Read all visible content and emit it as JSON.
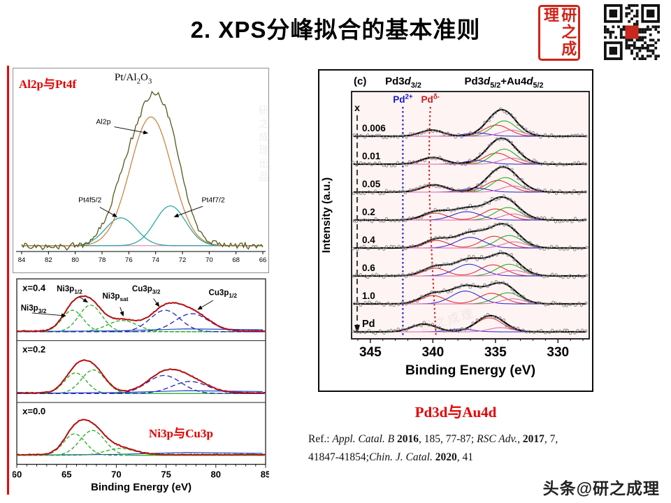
{
  "page": {
    "title": "2. XPS分峰拟合的基本准则",
    "watermark": "头条@研之成理",
    "faint": [
      "研之成理出品",
      "研之成理"
    ]
  },
  "logo": {
    "seal_text": "研之成理"
  },
  "caption": {
    "pd_label": "Pd3d与Au4d"
  },
  "refs": {
    "line1": [
      {
        "t": "Ref.: "
      },
      {
        "t": "Appl. Catal. B ",
        "i": 1
      },
      {
        "t": "2016",
        "b": 1
      },
      {
        "t": ", 185, 77-87; "
      },
      {
        "t": "RSC Adv.,",
        "i": 1
      },
      {
        "t": " "
      },
      {
        "t": "2017",
        "b": 1
      },
      {
        "t": ", 7,"
      }
    ],
    "line2": [
      {
        "t": "41847-41854;"
      },
      {
        "t": "Chin. J. Catal. ",
        "i": 1
      },
      {
        "t": "2020",
        "b": 1
      },
      {
        "t": ", 41"
      }
    ]
  },
  "chart_data": [
    {
      "id": "pt-al2o3",
      "type": "line",
      "corner_label": "Al2p与Pt4f",
      "title_runs": [
        {
          "t": "Pt/Al"
        },
        {
          "t": "2",
          "sub": 1
        },
        {
          "t": "O"
        },
        {
          "t": "3",
          "sub": 1
        }
      ],
      "xlabel": "",
      "ylabel": "",
      "x_range": [
        84,
        66
      ],
      "x_ticks": [
        84,
        82,
        80,
        78,
        76,
        74,
        72,
        70,
        68,
        66
      ],
      "series": [
        {
          "name": "baseline",
          "color": "#d98ab5",
          "peaks": []
        },
        {
          "name": "Pt4f5/2 fit",
          "color": "#1ba29b",
          "peaks": [
            [
              76.6,
              0.21,
              1.15
            ]
          ]
        },
        {
          "name": "Pt4f7/2 fit",
          "color": "#1ba29b",
          "peaks": [
            [
              72.9,
              0.3,
              1.15
            ]
          ]
        },
        {
          "name": "Al2p fit",
          "color": "#cc7a33",
          "peaks": [
            [
              74.35,
              0.97,
              1.55
            ]
          ]
        },
        {
          "name": "envelope",
          "color": "#56561e",
          "sum": true,
          "noise": 0.022
        }
      ],
      "annotations": [
        {
          "runs": [
            {
              "t": "Al2p"
            }
          ],
          "tx": 77.9,
          "ty": 0.93,
          "ax": 74.6,
          "ay": 0.86,
          "anchor": "middle",
          "fs": 10.5
        },
        {
          "runs": [
            {
              "t": "Pt4f5/2"
            }
          ],
          "tx": 78.9,
          "ty": 0.34,
          "ax": 76.9,
          "ay": 0.23,
          "anchor": "middle",
          "fs": 10.5
        },
        {
          "runs": [
            {
              "t": "Pt4f7/2"
            }
          ],
          "tx": 69.7,
          "ty": 0.34,
          "ax": 72.6,
          "ay": 0.23,
          "anchor": "middle",
          "fs": 10.5
        }
      ]
    },
    {
      "id": "ni-cu",
      "type": "line",
      "xlabel_runs": [
        {
          "t": "Binding Energy (eV)",
          "b": 1
        }
      ],
      "x_range": [
        60,
        85
      ],
      "x_ticks": [
        60,
        65,
        70,
        75,
        80,
        85
      ],
      "note": {
        "text": "Ni3p与Cu3p",
        "color": "#e60000",
        "x": 76.5,
        "y": 0.45,
        "panel": 2
      },
      "colors": {
        "envelope": "#b50f0f",
        "ni": "#1faf1f",
        "cu": "#2222c8",
        "base": "#2244cc"
      },
      "panels": [
        {
          "label": "x=0.4",
          "ni": [
            [
              65.6,
              0.5,
              1.05
            ],
            [
              67.4,
              0.62,
              1.15
            ],
            [
              70.6,
              0.26,
              1.5
            ]
          ],
          "cu": [
            [
              74.9,
              0.5,
              1.5
            ],
            [
              77.6,
              0.42,
              1.7
            ]
          ],
          "annotations": [
            {
              "runs": [
                {
                  "t": "Ni3p",
                  "b": 1
                },
                {
                  "t": "3/2",
                  "sub": 1,
                  "b": 1
                }
              ],
              "tx": 60.4,
              "ty": 0.52,
              "ax": 64.9,
              "ay": 0.4,
              "anchor": "start",
              "fs": 11.5
            },
            {
              "runs": [
                {
                  "t": "Ni3p",
                  "b": 1
                },
                {
                  "t": "1/2",
                  "sub": 1,
                  "b": 1
                }
              ],
              "tx": 65.3,
              "ty": 0.97,
              "ax": 67.1,
              "ay": 0.72,
              "anchor": "middle",
              "fs": 11.5
            },
            {
              "runs": [
                {
                  "t": "Ni3p",
                  "b": 1
                },
                {
                  "t": "sat",
                  "sub": 1,
                  "b": 1
                }
              ],
              "tx": 69.9,
              "ty": 0.8,
              "ax": 70.7,
              "ay": 0.4,
              "anchor": "middle",
              "fs": 11.5
            },
            {
              "runs": [
                {
                  "t": "Cu3p",
                  "b": 1
                },
                {
                  "t": "3/2",
                  "sub": 1,
                  "b": 1
                }
              ],
              "tx": 73.0,
              "ty": 0.97,
              "ax": 74.3,
              "ay": 0.62,
              "anchor": "middle",
              "fs": 11.5
            },
            {
              "runs": [
                {
                  "t": "Cu3p",
                  "b": 1
                },
                {
                  "t": "1/2",
                  "sub": 1,
                  "b": 1
                }
              ],
              "tx": 80.7,
              "ty": 0.88,
              "ax": 78.2,
              "ay": 0.55,
              "anchor": "middle",
              "fs": 11.5
            }
          ]
        },
        {
          "label": "x=0.2",
          "ni": [
            [
              65.9,
              0.48,
              1.1
            ],
            [
              67.7,
              0.55,
              1.2
            ]
          ],
          "cu": [
            [
              74.8,
              0.42,
              1.7
            ],
            [
              77.4,
              0.28,
              1.8
            ]
          ],
          "annotations": []
        },
        {
          "label": "x=0.0",
          "ni": [
            [
              65.8,
              0.5,
              1.1
            ],
            [
              67.6,
              0.58,
              1.25
            ],
            [
              70.4,
              0.16,
              1.5
            ]
          ],
          "cu": [],
          "annotations": []
        }
      ]
    },
    {
      "id": "pd3d",
      "type": "line",
      "panel_tag": "(c)",
      "header_left_runs": [
        {
          "t": "Pd3",
          "b": 1
        },
        {
          "t": "d",
          "b": 1,
          "i": 1
        },
        {
          "t": "3/2",
          "b": 1,
          "sub": 1
        }
      ],
      "header_right_runs": [
        {
          "t": "Pd3",
          "b": 1
        },
        {
          "t": "d",
          "b": 1,
          "i": 1
        },
        {
          "t": "5/2",
          "b": 1,
          "sub": 1
        },
        {
          "t": "+Au4",
          "b": 1
        },
        {
          "t": "d",
          "b": 1,
          "i": 1
        },
        {
          "t": "5/2",
          "b": 1,
          "sub": 1
        }
      ],
      "ylabel": "Intensity (a.u.)",
      "xlabel": "Binding Energy (eV)",
      "x_range": [
        346.5,
        327.5
      ],
      "x_ticks": [
        345,
        340,
        335,
        330
      ],
      "arrow_label": "x",
      "guides": [
        {
          "runs": [
            {
              "t": "Pd",
              "b": 1
            },
            {
              "t": "2+",
              "b": 1,
              "sup": 1
            }
          ],
          "x": 342.4,
          "color": "#1515cc"
        },
        {
          "runs": [
            {
              "t": "Pd",
              "b": 1
            },
            {
              "t": "δ-",
              "b": 1,
              "sup": 1
            }
          ],
          "x": 340.2,
          "color": "#d01818",
          "bend": true
        }
      ],
      "comp_colors": [
        "#e02020",
        "#18a818",
        "#2020d0",
        "#e060b0"
      ],
      "traces": [
        {
          "label": "0.006",
          "env": [
            [
              334.5,
              0.95,
              1.1
            ],
            [
              340.1,
              0.22,
              0.9
            ]
          ],
          "comps": [
            [
              [
                340.1,
                0.2,
                0.85
              ],
              [
                334.9,
                0.4,
                1.0
              ]
            ],
            [
              [
                334.3,
                0.55,
                0.95
              ]
            ],
            [
              [
                336.5,
                0.12,
                1.0
              ]
            ],
            [
              [
                333.7,
                0.22,
                0.9
              ]
            ]
          ]
        },
        {
          "label": "0.01",
          "env": [
            [
              334.5,
              0.93,
              1.15
            ],
            [
              340.0,
              0.24,
              0.95
            ]
          ],
          "comps": [
            [
              [
                340.0,
                0.22,
                0.85
              ],
              [
                334.9,
                0.4,
                1.0
              ]
            ],
            [
              [
                334.3,
                0.54,
                0.95
              ]
            ],
            [
              [
                336.5,
                0.13,
                1.0
              ]
            ],
            [
              [
                333.7,
                0.22,
                0.9
              ]
            ]
          ]
        },
        {
          "label": "0.05",
          "env": [
            [
              334.4,
              0.9,
              1.2
            ],
            [
              339.9,
              0.26,
              1.0
            ]
          ],
          "comps": [
            [
              [
                339.9,
                0.24,
                0.9
              ],
              [
                334.8,
                0.42,
                1.0
              ]
            ],
            [
              [
                334.2,
                0.52,
                1.0
              ]
            ],
            [
              [
                336.6,
                0.15,
                1.0
              ]
            ],
            [
              [
                333.6,
                0.22,
                0.9
              ]
            ]
          ]
        },
        {
          "label": "0.2",
          "env": [
            [
              334.4,
              0.8,
              1.2
            ],
            [
              337.3,
              0.4,
              1.2
            ],
            [
              339.8,
              0.28,
              1.0
            ]
          ],
          "comps": [
            [
              [
                339.8,
                0.25,
                0.9
              ],
              [
                335.0,
                0.4,
                1.0
              ]
            ],
            [
              [
                334.0,
                0.45,
                1.0
              ]
            ],
            [
              [
                337.3,
                0.3,
                1.1
              ]
            ],
            [
              [
                333.6,
                0.22,
                0.9
              ]
            ]
          ]
        },
        {
          "label": "0.4",
          "env": [
            [
              334.3,
              0.82,
              1.15
            ],
            [
              337.0,
              0.52,
              1.2
            ],
            [
              339.7,
              0.3,
              1.0
            ]
          ],
          "comps": [
            [
              [
                339.7,
                0.27,
                0.9
              ],
              [
                335.1,
                0.42,
                1.0
              ]
            ],
            [
              [
                333.9,
                0.45,
                1.0
              ]
            ],
            [
              [
                337.0,
                0.38,
                1.1
              ]
            ],
            [
              [
                333.5,
                0.22,
                0.9
              ]
            ]
          ]
        },
        {
          "label": "0.6",
          "env": [
            [
              334.3,
              0.78,
              1.15
            ],
            [
              337.1,
              0.58,
              1.2
            ],
            [
              339.8,
              0.32,
              1.0
            ]
          ],
          "comps": [
            [
              [
                339.8,
                0.28,
                0.9
              ],
              [
                335.2,
                0.4,
                1.0
              ]
            ],
            [
              [
                333.9,
                0.42,
                1.0
              ]
            ],
            [
              [
                337.1,
                0.42,
                1.1
              ]
            ],
            [
              [
                333.5,
                0.2,
                0.9
              ]
            ]
          ]
        },
        {
          "label": "1.0",
          "env": [
            [
              334.5,
              0.72,
              1.15
            ],
            [
              337.4,
              0.62,
              1.2
            ],
            [
              340.0,
              0.34,
              1.0
            ]
          ],
          "comps": [
            [
              [
                340.0,
                0.3,
                0.9
              ],
              [
                335.3,
                0.38,
                1.0
              ]
            ],
            [
              [
                334.0,
                0.4,
                1.0
              ]
            ],
            [
              [
                337.4,
                0.46,
                1.1
              ]
            ],
            [
              [
                333.6,
                0.18,
                0.9
              ]
            ]
          ]
        },
        {
          "label": "Pd",
          "env": [
            [
              335.4,
              0.58,
              1.1
            ],
            [
              340.7,
              0.28,
              1.0
            ]
          ],
          "comps": [
            [
              [
                340.7,
                0.26,
                0.95
              ],
              [
                335.5,
                0.5,
                1.05
              ]
            ],
            [],
            [
              [
                337.8,
                0.1,
                1.0
              ]
            ],
            [
              [
                334.6,
                0.15,
                0.9
              ]
            ]
          ]
        }
      ]
    }
  ]
}
